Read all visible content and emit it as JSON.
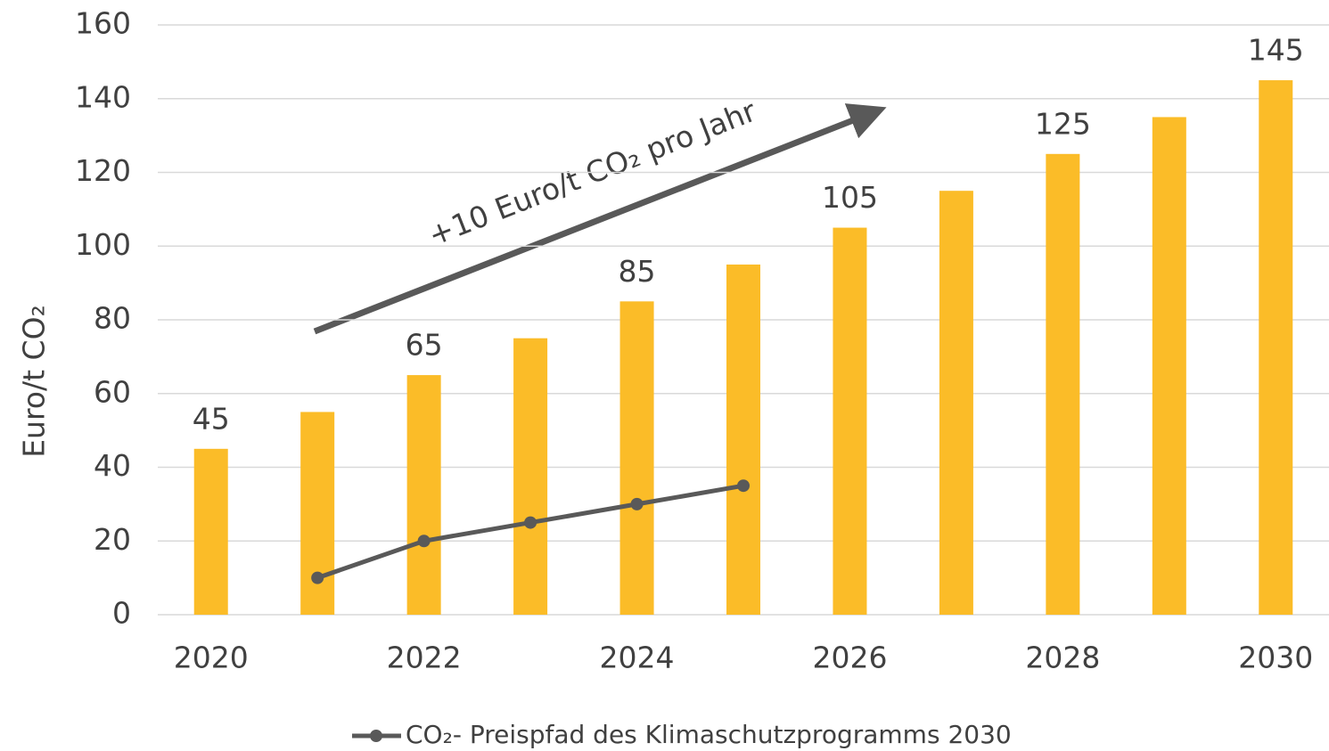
{
  "chart_data": {
    "type": "bar",
    "y_label": "Euro/t CO₂",
    "annotation": "+10 Euro/t CO₂ pro Jahr",
    "categories": [
      "2020",
      null,
      "2022",
      null,
      "2024",
      null,
      "2026",
      null,
      "2028",
      null,
      "2030"
    ],
    "series": [
      {
        "type": "bar",
        "color": "#fbbc28",
        "values": [
          45,
          55,
          65,
          75,
          85,
          95,
          105,
          115,
          125,
          135,
          145
        ],
        "value_labels": [
          "45",
          null,
          "65",
          null,
          "85",
          null,
          "105",
          null,
          "125",
          null,
          "145"
        ]
      },
      {
        "type": "line",
        "name": "CO₂- Preispfad des Klimaschutzprogramms 2030",
        "color": "#595959",
        "values": [
          null,
          10,
          20,
          25,
          30,
          35,
          null,
          null,
          null,
          null,
          null
        ]
      }
    ],
    "ylim": [
      0,
      160
    ],
    "yticks": [
      0,
      20,
      40,
      60,
      80,
      100,
      120,
      140,
      160
    ],
    "grid": true,
    "legend": "bottom"
  }
}
